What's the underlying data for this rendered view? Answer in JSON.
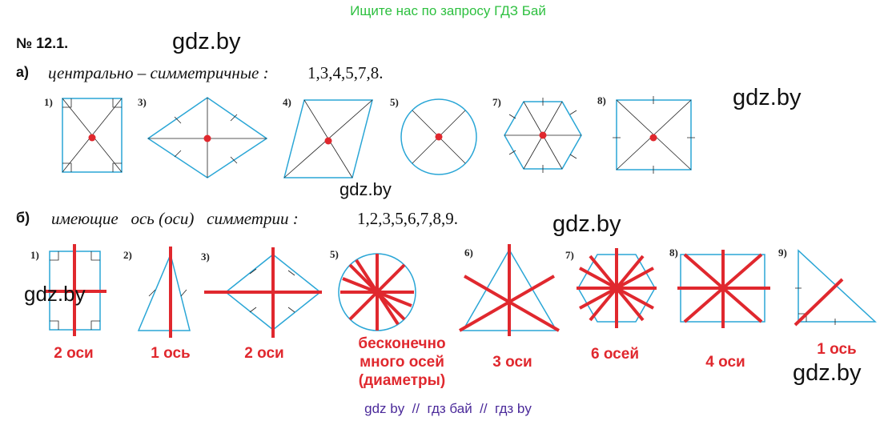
{
  "banner": "Ищите нас по запросу ГДЗ Бай",
  "problem_number": "№ 12.1.",
  "watermark": "gdz.by",
  "part_a": {
    "marker": "а)",
    "text": "центрально – симметричные :",
    "answer": "1,3,4,5,7,8.",
    "figures": [
      "1)",
      "3)",
      "4)",
      "5)",
      "7)",
      "8)"
    ]
  },
  "part_b": {
    "marker": "б)",
    "text": "имеющие   ось (оси)   симметрии :",
    "answer": "1,2,3,5,6,7,8,9.",
    "figures": [
      "1)",
      "2)",
      "3)",
      "5)",
      "6)",
      "7)",
      "8)",
      "9)"
    ],
    "labels": [
      "2 оси",
      "1 ось",
      "2 оси",
      "бесконечно много осей (диаметры)",
      "3 оси",
      "6 осей",
      "4 оси",
      "1 ось"
    ]
  },
  "footer": "gdz by  //  гдз бай  //  гдз by",
  "colors": {
    "banner": "#2ec040",
    "axis": "#e0282e",
    "figure": "#2aa6d6",
    "footer": "#4b2a9a"
  }
}
